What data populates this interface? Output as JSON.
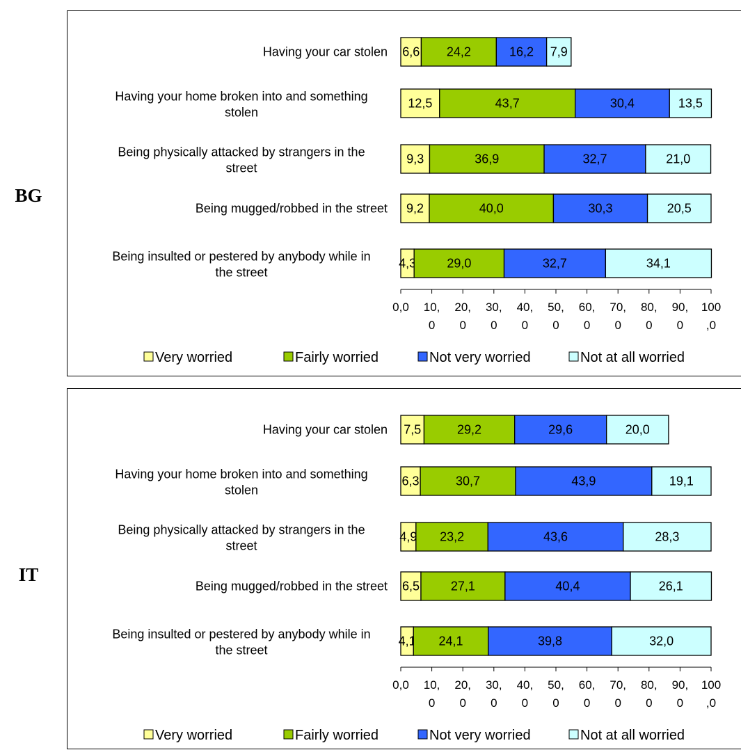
{
  "chart_data": [
    {
      "type": "bar",
      "orientation": "horizontal",
      "stacked": true,
      "group_label": "BG",
      "categories": [
        "Having your car stolen",
        "Having your home broken into and something stolen",
        "Being physically attacked by strangers in the street",
        "Being mugged/robbed in the street",
        "Being insulted or pestered by anybody while in the street"
      ],
      "series": [
        {
          "name": "Very worried",
          "color": "#FFFF99",
          "values": [
            6.6,
            12.5,
            9.3,
            9.2,
            4.3
          ],
          "labels": [
            "6,6",
            "12,5",
            "9,3",
            "9,2",
            "4,3"
          ]
        },
        {
          "name": "Fairly worried",
          "color": "#99CC00",
          "values": [
            24.2,
            43.7,
            36.9,
            40.0,
            29.0
          ],
          "labels": [
            "24,2",
            "43,7",
            "36,9",
            "40,0",
            "29,0"
          ]
        },
        {
          "name": "Not very worried",
          "color": "#3366FF",
          "values": [
            16.2,
            30.4,
            32.7,
            30.3,
            32.7
          ],
          "labels": [
            "16,2",
            "30,4",
            "32,7",
            "30,3",
            "32,7"
          ]
        },
        {
          "name": "Not at all worried",
          "color": "#CCFFFF",
          "values": [
            7.9,
            13.5,
            21.0,
            20.5,
            34.1
          ],
          "labels": [
            "7,9",
            "13,5",
            "21,0",
            "20,5",
            "34,1"
          ]
        }
      ],
      "xlim": [
        0,
        100
      ],
      "xticks": [
        {
          "top": "0,0",
          "bottom": ""
        },
        {
          "top": "10,",
          "bottom": "0"
        },
        {
          "top": "20,",
          "bottom": "0"
        },
        {
          "top": "30,",
          "bottom": "0"
        },
        {
          "top": "40,",
          "bottom": "0"
        },
        {
          "top": "50,",
          "bottom": "0"
        },
        {
          "top": "60,",
          "bottom": "0"
        },
        {
          "top": "70,",
          "bottom": "0"
        },
        {
          "top": "80,",
          "bottom": "0"
        },
        {
          "top": "90,",
          "bottom": "0"
        },
        {
          "top": "100",
          "bottom": ",0"
        }
      ],
      "legend": "bottom",
      "grid": false
    },
    {
      "type": "bar",
      "orientation": "horizontal",
      "stacked": true,
      "group_label": "IT",
      "categories": [
        "Having your car stolen",
        "Having your home broken into and something stolen",
        "Being physically attacked by strangers in the street",
        "Being mugged/robbed in the street",
        "Being insulted or pestered by anybody while in the street"
      ],
      "series": [
        {
          "name": "Very worried",
          "color": "#FFFF99",
          "values": [
            7.5,
            6.3,
            4.9,
            6.5,
            4.1
          ],
          "labels": [
            "7,5",
            "6,3",
            "4,9",
            "6,5",
            "4,1"
          ]
        },
        {
          "name": "Fairly worried",
          "color": "#99CC00",
          "values": [
            29.2,
            30.7,
            23.2,
            27.1,
            24.1
          ],
          "labels": [
            "29,2",
            "30,7",
            "23,2",
            "27,1",
            "24,1"
          ]
        },
        {
          "name": "Not very worried",
          "color": "#3366FF",
          "values": [
            29.6,
            43.9,
            43.6,
            40.4,
            39.8
          ],
          "labels": [
            "29,6",
            "43,9",
            "43,6",
            "40,4",
            "39,8"
          ]
        },
        {
          "name": "Not at all worried",
          "color": "#CCFFFF",
          "values": [
            20.0,
            19.1,
            28.3,
            26.1,
            32.0
          ],
          "labels": [
            "20,0",
            "19,1",
            "28,3",
            "26,1",
            "32,0"
          ]
        }
      ],
      "xlim": [
        0,
        100
      ],
      "xticks": [
        {
          "top": "0,0",
          "bottom": ""
        },
        {
          "top": "10,",
          "bottom": "0"
        },
        {
          "top": "20,",
          "bottom": "0"
        },
        {
          "top": "30,",
          "bottom": "0"
        },
        {
          "top": "40,",
          "bottom": "0"
        },
        {
          "top": "50,",
          "bottom": "0"
        },
        {
          "top": "60,",
          "bottom": "0"
        },
        {
          "top": "70,",
          "bottom": "0"
        },
        {
          "top": "80,",
          "bottom": "0"
        },
        {
          "top": "90,",
          "bottom": "0"
        },
        {
          "top": "100",
          "bottom": ",0"
        }
      ],
      "legend": "bottom",
      "grid": false
    }
  ]
}
